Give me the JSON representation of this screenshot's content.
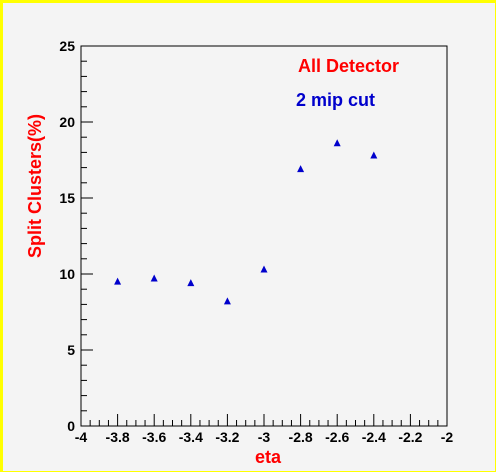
{
  "chart_data": {
    "type": "scatter",
    "title": "",
    "xlabel": "eta",
    "ylabel": "Split Clusters(%)",
    "xlim": [
      -4,
      -2
    ],
    "ylim": [
      0,
      25
    ],
    "xticks": [
      "-4",
      "-3.8",
      "-3.6",
      "-3.4",
      "-3.2",
      "-3",
      "-2.8",
      "-2.6",
      "-2.4",
      "-2.2",
      "-2"
    ],
    "yticks": [
      "0",
      "5",
      "10",
      "15",
      "20",
      "25"
    ],
    "grid": false,
    "annotations": [
      {
        "text": "All Detector",
        "color": "#ff0000"
      },
      {
        "text": "2 mip cut",
        "color": "#0000cc"
      }
    ],
    "series": [
      {
        "marker": "triangle",
        "color": "#0000cc",
        "x": [
          -3.8,
          -3.6,
          -3.4,
          -3.2,
          -3.0,
          -2.8,
          -2.6,
          -2.4
        ],
        "y": [
          9.5,
          9.7,
          9.4,
          8.2,
          10.3,
          16.9,
          18.6,
          17.8
        ]
      }
    ]
  },
  "colors": {
    "frame": "#ffff00",
    "background": "#f4f4f4",
    "xlabel_color": "#ff0000",
    "ylabel_color": "#ff0000"
  }
}
